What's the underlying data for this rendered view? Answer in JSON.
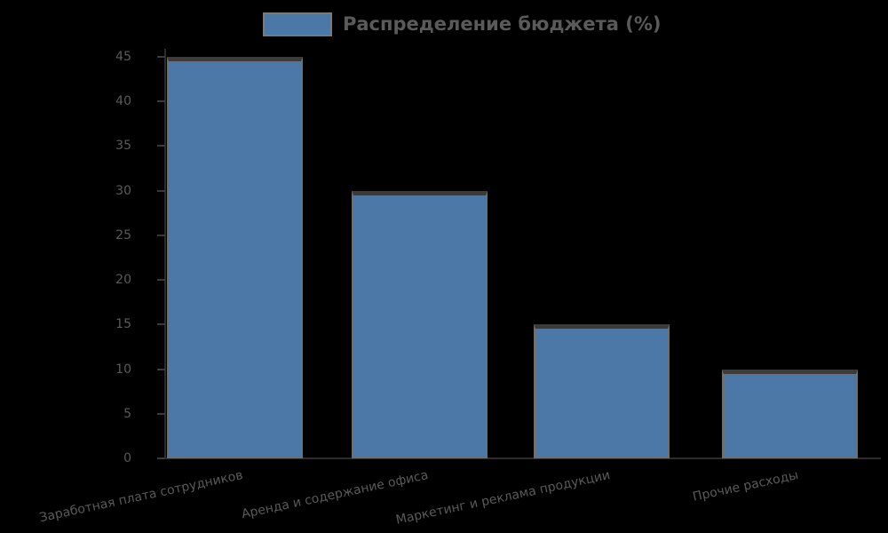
{
  "chart": {
    "colors": {
      "bar_fill": "#4C78A8",
      "bar_edge": "#6f6f6f",
      "bar_edge_top": "#3b3b3b",
      "text": "#5a5a5a",
      "axis": "#2c2c2c",
      "background": "#000000",
      "legend_swatch_border": "#7a7a7a"
    }
  },
  "chart_data": {
    "type": "bar",
    "title": "",
    "xlabel": "",
    "ylabel": "",
    "legend": [
      "Распределение бюджета (%)"
    ],
    "legend_position": "upper center",
    "categories": [
      "Заработная плата сотрудников",
      "Аренда и содержание офиса",
      "Маркетинг и реклама продукции",
      "Прочие расходы"
    ],
    "values": [
      45,
      30,
      15,
      10
    ],
    "yticks": [
      0,
      5,
      10,
      15,
      20,
      25,
      30,
      35,
      40,
      45
    ],
    "ylim": [
      0,
      47
    ],
    "x_tick_rotation": 15,
    "grid": false,
    "bar_color": "#4C78A8"
  }
}
